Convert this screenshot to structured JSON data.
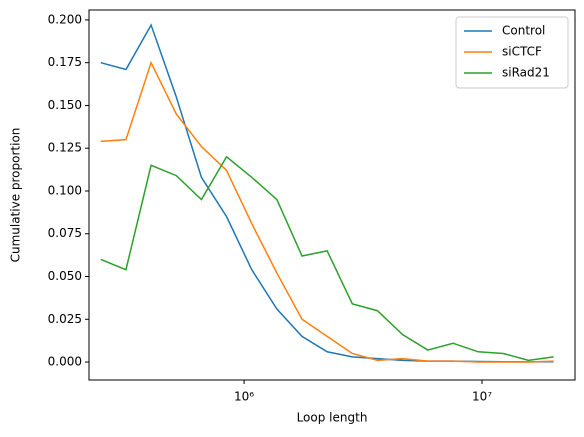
{
  "chart_data": {
    "type": "line",
    "xlabel": "Loop length",
    "ylabel": "Cumulative proportion",
    "x": [
      250000,
      318856,
      406700,
      518900,
      661900,
      844300,
      1077000,
      1374000,
      1752000,
      2235000,
      2851000,
      3637000,
      4642000,
      5921000,
      7552000,
      9636000,
      12290000,
      15680000,
      20000000
    ],
    "series": [
      {
        "name": "Control",
        "color": "#1f77b4",
        "values": [
          0.175,
          0.171,
          0.197,
          0.155,
          0.108,
          0.085,
          0.054,
          0.031,
          0.015,
          0.006,
          0.003,
          0.002,
          0.001,
          0.0005,
          0.0005,
          0.0003,
          0.0002,
          0.0001,
          0.0002
        ]
      },
      {
        "name": "siCTCF",
        "color": "#ff7f0e",
        "values": [
          0.129,
          0.13,
          0.175,
          0.145,
          0.126,
          0.112,
          0.081,
          0.052,
          0.025,
          0.015,
          0.005,
          0.001,
          0.002,
          0.0005,
          0.0005,
          0.0,
          0.0,
          0.0,
          0.0005
        ]
      },
      {
        "name": "siRad21",
        "color": "#2ca02c",
        "values": [
          0.06,
          0.054,
          0.115,
          0.109,
          0.095,
          0.12,
          0.108,
          0.095,
          0.062,
          0.065,
          0.034,
          0.03,
          0.016,
          0.007,
          0.011,
          0.006,
          0.005,
          0.001,
          0.003
        ]
      }
    ],
    "xscale": "log",
    "xlim": [
      223000,
      24600000
    ],
    "xticks": [
      {
        "value": 1000000,
        "label": "10⁶"
      },
      {
        "value": 10000000,
        "label": "10⁷"
      }
    ],
    "ylim": [
      -0.0105,
      0.2058
    ],
    "yticks": [
      {
        "value": 0,
        "label": "0.000"
      },
      {
        "value": 0.025,
        "label": "0.025"
      },
      {
        "value": 0.05,
        "label": "0.050"
      },
      {
        "value": 0.075,
        "label": "0.075"
      },
      {
        "value": 0.1,
        "label": "0.100"
      },
      {
        "value": 0.125,
        "label": "0.125"
      },
      {
        "value": 0.15,
        "label": "0.150"
      },
      {
        "value": 0.175,
        "label": "0.175"
      },
      {
        "value": 0.2,
        "label": "0.200"
      }
    ],
    "grid": false,
    "legend": "upper right"
  }
}
